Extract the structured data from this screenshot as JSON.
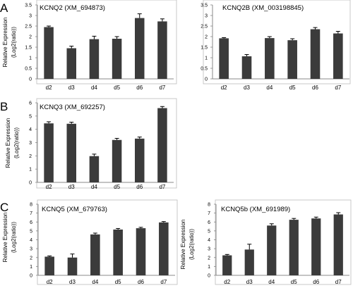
{
  "figure": {
    "panel_letters": [
      "A",
      "B",
      "C"
    ]
  },
  "colors": {
    "bar": "#3b3b3b",
    "axis": "#888888",
    "frame": "#bdbdbd",
    "error": "#000000"
  },
  "chart_data": [
    {
      "type": "bar",
      "title": "KCNQ2 (XM_694873)",
      "ylabel": "Relative Expression (Log2(ratio))",
      "ylabel_lines": [
        "Relative Expression",
        "(Log2(ratio))"
      ],
      "categories": [
        "d2",
        "d3",
        "d4",
        "d5",
        "d6",
        "d7"
      ],
      "values": [
        2.45,
        1.45,
        1.88,
        1.9,
        2.88,
        2.72
      ],
      "errors": [
        0.05,
        0.1,
        0.14,
        0.1,
        0.2,
        0.12
      ],
      "ylim": [
        0,
        3.5
      ],
      "yticks": [
        "0",
        "0.5",
        "1",
        "1.5",
        "2",
        "2.5",
        "3",
        "3.5"
      ],
      "grid": false,
      "legend": "none"
    },
    {
      "type": "bar",
      "title": "KCNQ2B (XM_003198845)",
      "ylabel": "",
      "categories": [
        "d2",
        "d3",
        "d4",
        "d5",
        "d6",
        "d7"
      ],
      "values": [
        1.92,
        1.07,
        1.93,
        1.83,
        2.35,
        2.15
      ],
      "errors": [
        0.03,
        0.08,
        0.07,
        0.07,
        0.08,
        0.1
      ],
      "ylim": [
        0,
        3.5
      ],
      "yticks": [
        "0",
        "0.5",
        "1",
        "1.5",
        "2",
        "2.5",
        "3",
        "3.5"
      ],
      "grid": false,
      "legend": "none"
    },
    {
      "type": "bar",
      "title": "KCNQ3 (XM_692257)",
      "ylabel": "Relative Expression (Log2(ratio))",
      "ylabel_lines": [
        "Relative Expression",
        "(Log2(ratio))"
      ],
      "categories": [
        "d2",
        "d3",
        "d4",
        "d5",
        "d6",
        "d7"
      ],
      "values": [
        4.45,
        4.42,
        1.98,
        3.2,
        3.3,
        5.6
      ],
      "errors": [
        0.12,
        0.12,
        0.15,
        0.12,
        0.12,
        0.12
      ],
      "ylim": [
        0,
        6
      ],
      "yticks": [
        "0",
        "1",
        "2",
        "3",
        "4",
        "5",
        "6"
      ],
      "grid": false,
      "legend": "none"
    },
    {
      "type": "bar",
      "title": "KCNQ5 (XM_679763)",
      "ylabel": "Relative Expression (Log2(ratio))",
      "ylabel_lines": [
        "Relative Expression",
        "(Log2(ratio))"
      ],
      "categories": [
        "d2",
        "d3",
        "d4",
        "d5",
        "d6",
        "d7"
      ],
      "values": [
        2.1,
        2.0,
        4.6,
        5.15,
        5.3,
        5.95
      ],
      "errors": [
        0.08,
        0.4,
        0.15,
        0.12,
        0.1,
        0.1
      ],
      "ylim": [
        0,
        8
      ],
      "yticks": [
        "0",
        "1",
        "2",
        "3",
        "4",
        "5",
        "6",
        "7",
        "8"
      ],
      "grid": false,
      "legend": "none"
    },
    {
      "type": "bar",
      "title": "KCNQ5b (XM_691989)",
      "ylabel": "Relative Expression (Log2(ratio))",
      "ylabel_lines": [
        "Relative Expression",
        "(Log2(ratio))"
      ],
      "categories": [
        "d2",
        "d3",
        "d4",
        "d5",
        "d6",
        "d7"
      ],
      "values": [
        2.25,
        2.9,
        5.6,
        6.25,
        6.4,
        6.85
      ],
      "errors": [
        0.1,
        0.6,
        0.2,
        0.15,
        0.15,
        0.2
      ],
      "ylim": [
        0,
        8
      ],
      "yticks": [
        "0",
        "1",
        "2",
        "3",
        "4",
        "5",
        "6",
        "7",
        "8"
      ],
      "grid": false,
      "legend": "none"
    }
  ]
}
